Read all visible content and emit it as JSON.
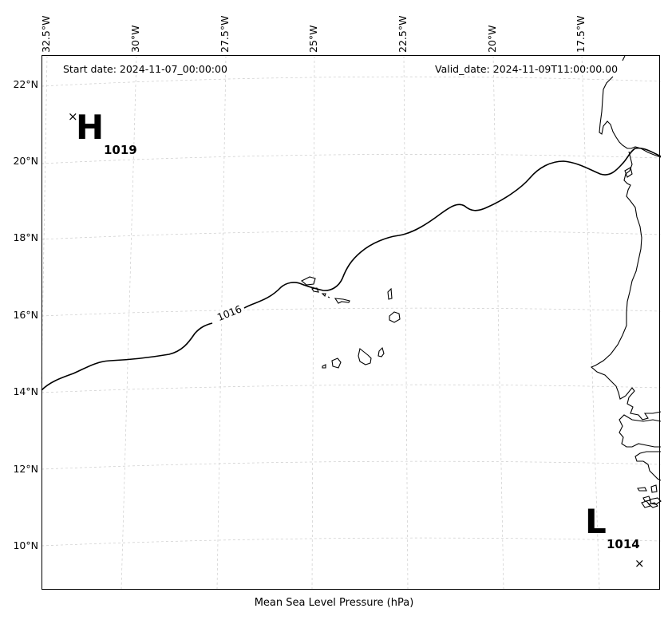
{
  "map": {
    "start_label": "Start date: 2024-11-07_00:00:00",
    "valid_label": "Valid_date: 2024-11-09T11:00:00.00",
    "caption": "Mean Sea Level Pressure (hPa)",
    "lon_labels": [
      "32.5°W",
      "30°W",
      "27.5°W",
      "25°W",
      "22.5°W",
      "20°W",
      "17.5°W"
    ],
    "lat_labels": [
      "22°N",
      "20°N",
      "18°N",
      "16°N",
      "14°N",
      "12°N",
      "10°N"
    ],
    "isobar_label": "1016",
    "high": {
      "symbol": "H",
      "value": "1019",
      "marker": "×"
    },
    "low": {
      "symbol": "L",
      "value": "1014",
      "marker": "×"
    },
    "gridlines": true,
    "colors": {
      "coast": "#000000",
      "isobar": "#000000",
      "grid": "#cccccc"
    }
  }
}
